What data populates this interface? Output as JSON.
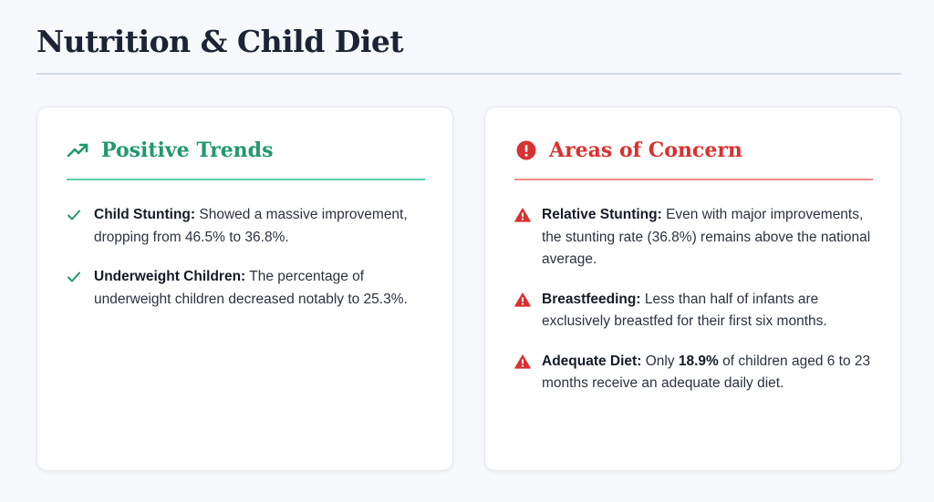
{
  "page": {
    "title": "Nutrition & Child Diet"
  },
  "positive": {
    "title": "Positive Trends",
    "icon": "trending-up-icon",
    "color": "#1f9a6a",
    "items": [
      {
        "label": "Child Stunting:",
        "text": "Showed a massive improvement, dropping from 46.5% to 36.8%.",
        "icon": "check-icon"
      },
      {
        "label": "Underweight Children:",
        "text": "The percentage of underweight children decreased notably to 25.3%.",
        "icon": "check-icon"
      }
    ]
  },
  "concern": {
    "title": "Areas of Concern",
    "icon": "alert-circle-icon",
    "color": "#d93131",
    "items": [
      {
        "label": "Relative Stunting:",
        "text": "Even with major improvements, the stunting rate (36.8%) remains above the national average.",
        "icon": "warning-triangle-icon"
      },
      {
        "label": "Breastfeeding:",
        "text": "Less than half of infants are exclusively breastfed for their first six months.",
        "icon": "warning-triangle-icon"
      },
      {
        "label": "Adequate Diet:",
        "text_before": "Only",
        "highlight": "18.9%",
        "text_after": "of children aged 6 to 23 months receive an adequate daily diet.",
        "icon": "warning-triangle-icon"
      }
    ]
  }
}
